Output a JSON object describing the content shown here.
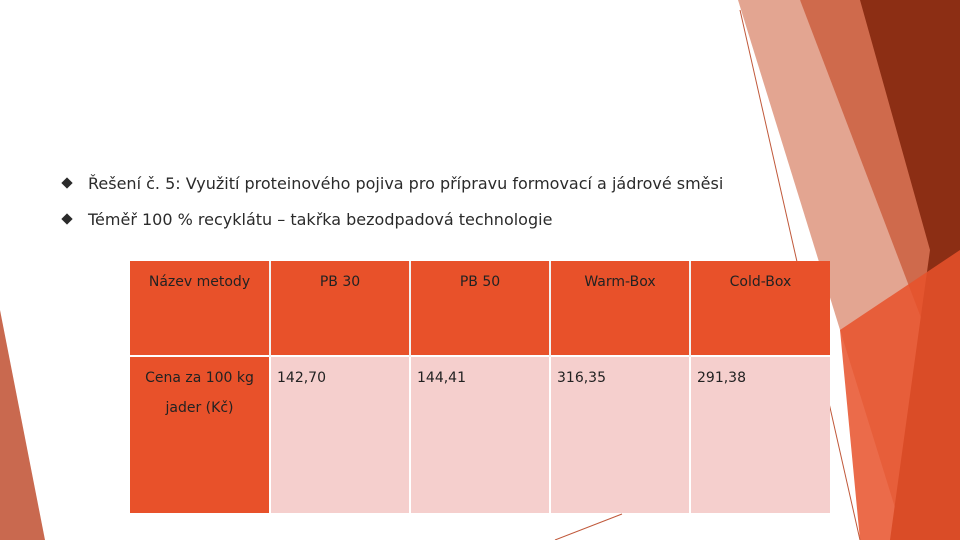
{
  "bullets": [
    "Řešení č. 5: Využití proteinového pojiva pro přípravu formovací a jádrové směsi",
    "Téměř 100 % recyklátu – takřka bezodpadová technologie"
  ],
  "table": {
    "header": [
      "Název metody",
      "PB 30",
      "PB 50",
      "Warm-Box",
      "Cold-Box"
    ],
    "row": [
      "Cena za 100 kg jader (Kč)",
      "142,70",
      "144,41",
      "316,35",
      "291,38"
    ]
  },
  "colors": {
    "accent": "#e8512a",
    "cell_light": "#f5cfcd",
    "deco_dark": "#8c2e14",
    "deco_mid": "#cf6a4c",
    "deco_light": "#e3a591"
  }
}
